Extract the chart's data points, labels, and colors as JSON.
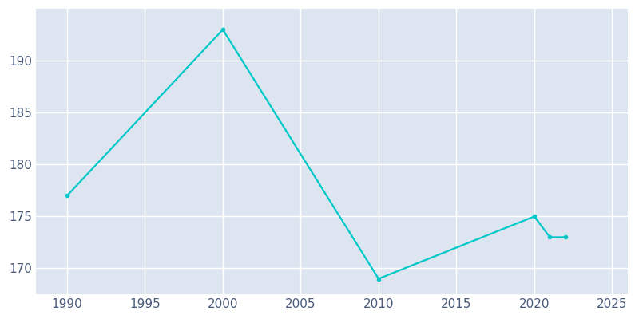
{
  "years": [
    1990,
    2000,
    2010,
    2020,
    2021,
    2022
  ],
  "population": [
    177,
    193,
    169,
    175,
    173,
    173
  ],
  "line_color": "#00c8c8",
  "plot_bg_color": "#dde6f0",
  "fig_bg_color": "#ffffff",
  "grid_color": "#ffffff",
  "tick_color": "#4a5a7a",
  "xlim": [
    1988,
    2026
  ],
  "ylim": [
    167.5,
    195
  ],
  "yticks": [
    170,
    175,
    180,
    185,
    190
  ],
  "xticks": [
    1990,
    1995,
    2000,
    2005,
    2010,
    2015,
    2020,
    2025
  ],
  "linewidth": 1.6,
  "markersize": 3.0
}
